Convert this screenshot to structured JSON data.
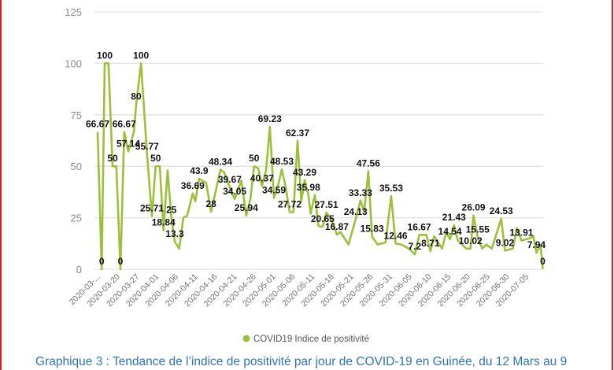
{
  "chart_data": {
    "type": "line",
    "title": "",
    "xlabel": "",
    "ylabel": "",
    "ylim": [
      0,
      125
    ],
    "xlim": [
      0,
      119
    ],
    "grid": true,
    "legend_position": "bottom",
    "y_ticks": [
      "0",
      "25",
      "50",
      "75",
      "100",
      "125"
    ],
    "x_tick_labels": [
      "2020-03-...",
      "2020-03-20",
      "2020-03-27",
      "2020-04-01",
      "2020-04-06",
      "2020-04-11",
      "2020-04-16",
      "2020-04-21",
      "2020-04-26",
      "2020-05-01",
      "2020-05-06",
      "2020-05-11",
      "2020-05-16",
      "2020-05-21",
      "2020-05-26",
      "2020-05-31",
      "2020-06-05",
      "2020-06-10",
      "2020-06-15",
      "2020-06-20",
      "2020-06-25",
      "2020-06-30",
      "2020-07-05"
    ],
    "series": [
      {
        "name": "COVID19 Indice de positivité",
        "color": "#9dc03a",
        "points": [
          [
            0,
            66.67,
            "66.67"
          ],
          [
            1.1,
            0,
            "0"
          ],
          [
            1.9,
            100,
            "100"
          ],
          [
            2.9,
            100,
            null
          ],
          [
            4.0,
            50,
            "50"
          ],
          [
            5.0,
            50,
            null
          ],
          [
            6.1,
            0,
            "0"
          ],
          [
            7.1,
            66.67,
            "66.67"
          ],
          [
            8.2,
            57.14,
            "57.14"
          ],
          [
            9.7,
            66.67,
            null
          ],
          [
            10.3,
            80,
            "80"
          ],
          [
            11.6,
            100,
            "100"
          ],
          [
            13.2,
            55.77,
            "55.77"
          ],
          [
            14.5,
            25.71,
            "25.71"
          ],
          [
            15.5,
            50,
            "50"
          ],
          [
            16.6,
            50,
            null
          ],
          [
            17.6,
            18.84,
            "18.84"
          ],
          [
            18.7,
            48,
            null
          ],
          [
            19.7,
            25,
            "25"
          ],
          [
            20.6,
            13.3,
            "13.3"
          ],
          [
            21.8,
            10,
            null
          ],
          [
            22.9,
            25,
            null
          ],
          [
            23.9,
            26,
            null
          ],
          [
            25.4,
            36.69,
            "36.69"
          ],
          [
            26.1,
            33,
            null
          ],
          [
            27.1,
            43.9,
            "43.9"
          ],
          [
            29.0,
            42,
            null
          ],
          [
            30.3,
            28,
            "28"
          ],
          [
            31.3,
            36,
            null
          ],
          [
            32.8,
            48.34,
            "48.34"
          ],
          [
            33.8,
            47,
            null
          ],
          [
            35.3,
            39.67,
            "39.67"
          ],
          [
            36.6,
            34.05,
            "34.05"
          ],
          [
            38.4,
            43,
            null
          ],
          [
            39.7,
            25.94,
            "25.94"
          ],
          [
            40.8,
            34,
            null
          ],
          [
            41.8,
            50,
            "50"
          ],
          [
            42.9,
            49,
            null
          ],
          [
            43.9,
            40.37,
            "40.37"
          ],
          [
            45.0,
            48,
            null
          ],
          [
            46.0,
            69.23,
            "69.23"
          ],
          [
            47.1,
            34.59,
            "34.59"
          ],
          [
            48.1,
            40,
            null
          ],
          [
            49.2,
            48.53,
            "48.53"
          ],
          [
            50.2,
            40,
            null
          ],
          [
            51.3,
            27.72,
            "27.72"
          ],
          [
            52.3,
            27.72,
            null
          ],
          [
            53.4,
            62.37,
            "62.37"
          ],
          [
            54.4,
            33,
            null
          ],
          [
            55.3,
            43.29,
            "43.29"
          ],
          [
            56.3,
            35.98,
            "35.98"
          ],
          [
            56.9,
            27,
            null
          ],
          [
            58.0,
            36,
            null
          ],
          [
            59.0,
            21,
            null
          ],
          [
            60.1,
            20.65,
            "20.65"
          ],
          [
            61.1,
            27.51,
            "27.51"
          ],
          [
            62.2,
            25,
            null
          ],
          [
            63.9,
            16.87,
            "16.87"
          ],
          [
            64.9,
            18,
            null
          ],
          [
            67.0,
            12,
            null
          ],
          [
            68.9,
            24.13,
            "24.13"
          ],
          [
            70.2,
            33.33,
            "33.33"
          ],
          [
            71.2,
            28,
            null
          ],
          [
            72.3,
            47.56,
            "47.56"
          ],
          [
            73.3,
            15.83,
            "15.83"
          ],
          [
            74.8,
            12,
            null
          ],
          [
            76.9,
            13,
            null
          ],
          [
            78.4,
            35.53,
            "35.53"
          ],
          [
            79.6,
            12.46,
            "12.46"
          ],
          [
            81.1,
            12,
            null
          ],
          [
            83.2,
            10,
            null
          ],
          [
            84.7,
            7.2,
            "7.2"
          ],
          [
            85.9,
            16.67,
            "16.67"
          ],
          [
            87.8,
            16.67,
            null
          ],
          [
            88.9,
            8.71,
            "8.71"
          ],
          [
            89.9,
            16,
            null
          ],
          [
            92.0,
            10,
            null
          ],
          [
            93.1,
            18,
            null
          ],
          [
            94.1,
            14.54,
            "14.54"
          ],
          [
            95.2,
            21.43,
            "21.43"
          ],
          [
            96.2,
            14,
            null
          ],
          [
            98.5,
            10,
            null
          ],
          [
            99.6,
            10.02,
            "10.02"
          ],
          [
            100.4,
            26.09,
            "26.09"
          ],
          [
            101.5,
            15.55,
            "15.55"
          ],
          [
            102.7,
            10.02,
            null
          ],
          [
            103.8,
            12,
            null
          ],
          [
            105.3,
            10,
            null
          ],
          [
            107.8,
            24.53,
            "24.53"
          ],
          [
            108.8,
            9.02,
            "9.02"
          ],
          [
            110.9,
            10,
            null
          ],
          [
            112.0,
            20,
            null
          ],
          [
            113.2,
            13.91,
            "13.91"
          ],
          [
            115.3,
            15,
            null
          ],
          [
            116.4,
            16,
            null
          ],
          [
            117.2,
            7.94,
            "7.94"
          ],
          [
            118.3,
            12,
            null
          ],
          [
            118.9,
            0,
            "0"
          ]
        ]
      }
    ]
  },
  "legend": {
    "label": "COVID19 Indice de positivité"
  },
  "caption": "Graphique 3 : Tendance de l’indice de positivité par jour de COVID-19 en Guinée, du 12 Mars au 9"
}
